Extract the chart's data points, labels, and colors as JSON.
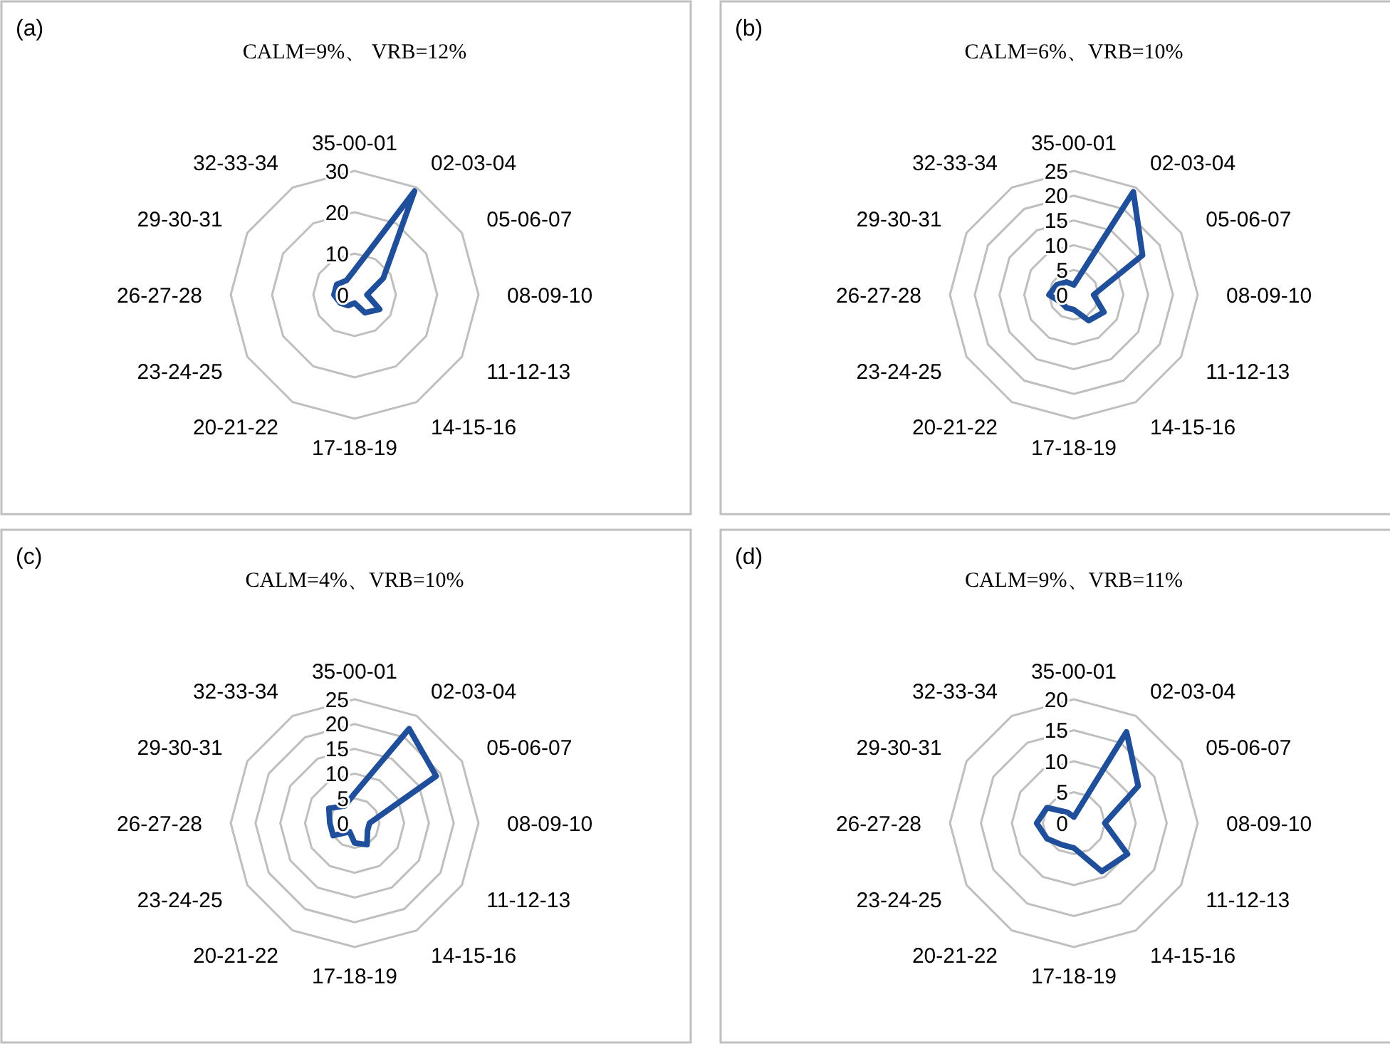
{
  "chart_data": [
    {
      "type": "radar",
      "title": "CALM=9%、 VRB=12%",
      "annotations": [
        "(a)"
      ],
      "categories": [
        "35-00-01",
        "02-03-04",
        "05-06-07",
        "08-09-10",
        "11-12-13",
        "14-15-16",
        "17-18-19",
        "20-21-22",
        "23-24-25",
        "26-27-28",
        "29-30-31",
        "32-33-34"
      ],
      "ylim": [
        0,
        30
      ],
      "yticks": [
        0,
        10,
        20,
        30
      ],
      "grid": true,
      "series": [
        {
          "color": "#1f4e9a",
          "values": [
            6,
            29,
            8,
            3,
            7,
            5,
            2,
            3,
            4,
            5,
            5,
            4
          ]
        }
      ]
    },
    {
      "type": "radar",
      "title": "CALM=6%、VRB=10%",
      "annotations": [
        "(b)"
      ],
      "categories": [
        "35-00-01",
        "02-03-04",
        "05-06-07",
        "08-09-10",
        "11-12-13",
        "14-15-16",
        "17-18-19",
        "20-21-22",
        "23-24-25",
        "26-27-28",
        "29-30-31",
        "32-33-34"
      ],
      "ylim": [
        0,
        25
      ],
      "yticks": [
        0,
        5,
        10,
        15,
        20,
        25
      ],
      "grid": true,
      "series": [
        {
          "color": "#1f4e9a",
          "values": [
            2,
            24,
            16,
            4,
            7,
            6,
            3,
            3,
            3,
            5,
            4,
            3
          ]
        }
      ]
    },
    {
      "type": "radar",
      "title": "CALM=4%、VRB=10%",
      "annotations": [
        "(c)"
      ],
      "categories": [
        "35-00-01",
        "02-03-04",
        "05-06-07",
        "08-09-10",
        "11-12-13",
        "14-15-16",
        "17-18-19",
        "20-21-22",
        "23-24-25",
        "26-27-28",
        "29-30-31",
        "32-33-34"
      ],
      "ylim": [
        0,
        25
      ],
      "yticks": [
        0,
        5,
        10,
        15,
        20,
        25
      ],
      "grid": true,
      "series": [
        {
          "color": "#1f4e9a",
          "values": [
            6,
            22,
            19,
            3,
            3,
            5,
            4,
            2,
            5,
            5,
            6,
            4
          ]
        }
      ]
    },
    {
      "type": "radar",
      "title": "CALM=9%、VRB=11%",
      "annotations": [
        "(d)"
      ],
      "categories": [
        "35-00-01",
        "02-03-04",
        "05-06-07",
        "08-09-10",
        "11-12-13",
        "14-15-16",
        "17-18-19",
        "20-21-22",
        "23-24-25",
        "26-27-28",
        "29-30-31",
        "32-33-34"
      ],
      "ylim": [
        0,
        20
      ],
      "yticks": [
        0,
        5,
        10,
        15,
        20
      ],
      "grid": true,
      "series": [
        {
          "color": "#1f4e9a",
          "values": [
            1,
            17,
            12,
            5,
            10,
            9,
            4,
            4,
            5,
            6,
            5,
            2
          ]
        }
      ]
    }
  ]
}
